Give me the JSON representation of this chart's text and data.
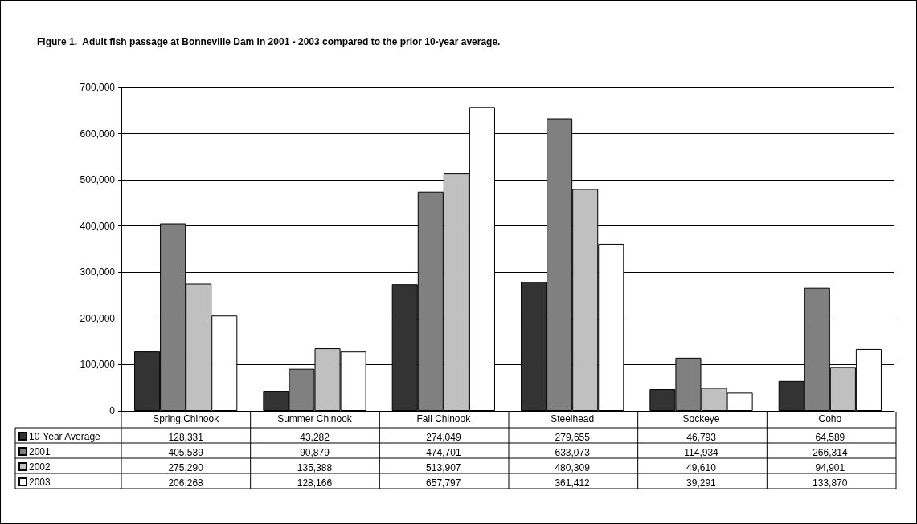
{
  "chart_data": {
    "type": "bar",
    "title": "Figure 1.  Adult fish passage at Bonneville Dam in 2001 - 2003 compared to the prior 10-year average.",
    "categories": [
      "Spring Chinook",
      "Summer Chinook",
      "Fall Chinook",
      "Steelhead",
      "Sockeye",
      "Coho"
    ],
    "series": [
      {
        "name": "10-Year Average",
        "color": "#333333",
        "values": [
          128331,
          43282,
          274049,
          279655,
          46793,
          64589
        ],
        "value_labels": [
          "128,331",
          "43,282",
          "274,049",
          "279,655",
          "46,793",
          "64,589"
        ]
      },
      {
        "name": "2001",
        "color": "#808080",
        "values": [
          405539,
          90879,
          474701,
          633073,
          114934,
          266314
        ],
        "value_labels": [
          "405,539",
          "90,879",
          "474,701",
          "633,073",
          "114,934",
          "266,314"
        ]
      },
      {
        "name": "2002",
        "color": "#c0c0c0",
        "values": [
          275290,
          135388,
          513907,
          480309,
          49610,
          94901
        ],
        "value_labels": [
          "275,290",
          "135,388",
          "513,907",
          "480,309",
          "49,610",
          "94,901"
        ]
      },
      {
        "name": "2003",
        "color": "#ffffff",
        "values": [
          206268,
          128166,
          657797,
          361412,
          39291,
          133870
        ],
        "value_labels": [
          "206,268",
          "128,166",
          "657,797",
          "361,412",
          "39,291",
          "133,870"
        ]
      }
    ],
    "ylim": [
      0,
      700000
    ],
    "yticks": [
      {
        "value": 0,
        "label": "0"
      },
      {
        "value": 100000,
        "label": "100,000"
      },
      {
        "value": 200000,
        "label": "200,000"
      },
      {
        "value": 300000,
        "label": "300,000"
      },
      {
        "value": 400000,
        "label": "400,000"
      },
      {
        "value": 500000,
        "label": "500,000"
      },
      {
        "value": 600000,
        "label": "600,000"
      },
      {
        "value": 700000,
        "label": "700,000"
      }
    ],
    "grid": "y",
    "legend": "bottom left"
  }
}
